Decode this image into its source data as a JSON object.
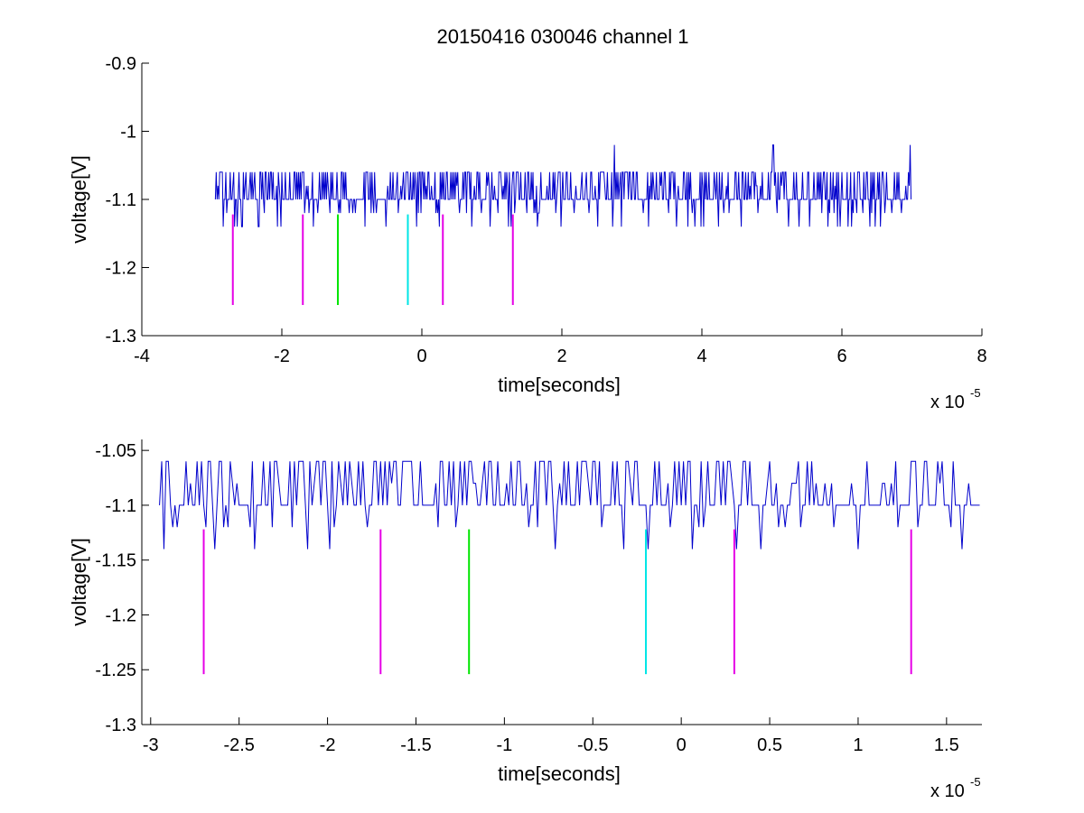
{
  "title": "20150416 030046 channel 1",
  "colors": {
    "trace": "#0000cc",
    "magenta": "#e600e6",
    "green": "#00e600",
    "cyan": "#00e6e6",
    "axis": "#000000"
  },
  "chart_data": [
    {
      "type": "line",
      "xlabel": "time[seconds]",
      "ylabel": "voltage[V]",
      "x_multiplier_label": "x 10",
      "x_multiplier_exponent": "-5",
      "xlim": [
        -4,
        8
      ],
      "ylim": [
        -1.3,
        -0.9
      ],
      "xticks": [
        -4,
        -2,
        0,
        2,
        4,
        6,
        8
      ],
      "xtick_labels": [
        "-4",
        "-2",
        "0",
        "2",
        "4",
        "6",
        "8"
      ],
      "yticks": [
        -1.3,
        -1.2,
        -1.1,
        -1,
        -0.9
      ],
      "ytick_labels": [
        "-1.3",
        "-1.2",
        "-1.1",
        "-1",
        "-0.9"
      ],
      "signal": {
        "t_start": -2.95,
        "t_end": 7.0,
        "baseline": -1.1,
        "levels": [
          -1.06,
          -1.08,
          -1.12,
          -1.14
        ],
        "spikes": [
          {
            "t": 2.75,
            "v": -1.02
          },
          {
            "t": 5.02,
            "v": -1.02
          },
          {
            "t": 6.98,
            "v": -1.02
          }
        ]
      },
      "markers": [
        {
          "t": -2.7,
          "y_top": -1.122,
          "y_bottom": -1.255,
          "color": "magenta"
        },
        {
          "t": -1.7,
          "y_top": -1.122,
          "y_bottom": -1.255,
          "color": "magenta"
        },
        {
          "t": -1.2,
          "y_top": -1.122,
          "y_bottom": -1.255,
          "color": "green"
        },
        {
          "t": -0.2,
          "y_top": -1.122,
          "y_bottom": -1.255,
          "color": "cyan"
        },
        {
          "t": 0.3,
          "y_top": -1.122,
          "y_bottom": -1.255,
          "color": "magenta"
        },
        {
          "t": 1.3,
          "y_top": -1.122,
          "y_bottom": -1.255,
          "color": "magenta"
        }
      ]
    },
    {
      "type": "line",
      "xlabel": "time[seconds]",
      "ylabel": "voltage[V]",
      "x_multiplier_label": "x 10",
      "x_multiplier_exponent": "-5",
      "xlim": [
        -3.05,
        1.7
      ],
      "ylim": [
        -1.3,
        -1.04
      ],
      "xticks": [
        -3,
        -2.5,
        -2,
        -1.5,
        -1,
        -0.5,
        0,
        0.5,
        1,
        1.5
      ],
      "xtick_labels": [
        "-3",
        "-2.5",
        "-2",
        "-1.5",
        "-1",
        "-0.5",
        "0",
        "0.5",
        "1",
        "1.5"
      ],
      "yticks": [
        -1.3,
        -1.25,
        -1.2,
        -1.15,
        -1.1,
        -1.05
      ],
      "ytick_labels": [
        "-1.3",
        "-1.25",
        "-1.2",
        "-1.15",
        "-1.1",
        "-1.05"
      ],
      "signal": {
        "t_start": -2.95,
        "t_end": 1.7,
        "baseline": -1.1,
        "levels": [
          -1.06,
          -1.08,
          -1.12,
          -1.14
        ],
        "spikes": []
      },
      "markers": [
        {
          "t": -2.7,
          "y_top": -1.122,
          "y_bottom": -1.254,
          "color": "magenta"
        },
        {
          "t": -1.7,
          "y_top": -1.122,
          "y_bottom": -1.254,
          "color": "magenta"
        },
        {
          "t": -1.2,
          "y_top": -1.122,
          "y_bottom": -1.254,
          "color": "green"
        },
        {
          "t": -0.2,
          "y_top": -1.122,
          "y_bottom": -1.254,
          "color": "cyan"
        },
        {
          "t": 0.3,
          "y_top": -1.122,
          "y_bottom": -1.254,
          "color": "magenta"
        },
        {
          "t": 1.3,
          "y_top": -1.122,
          "y_bottom": -1.254,
          "color": "magenta"
        }
      ]
    }
  ]
}
